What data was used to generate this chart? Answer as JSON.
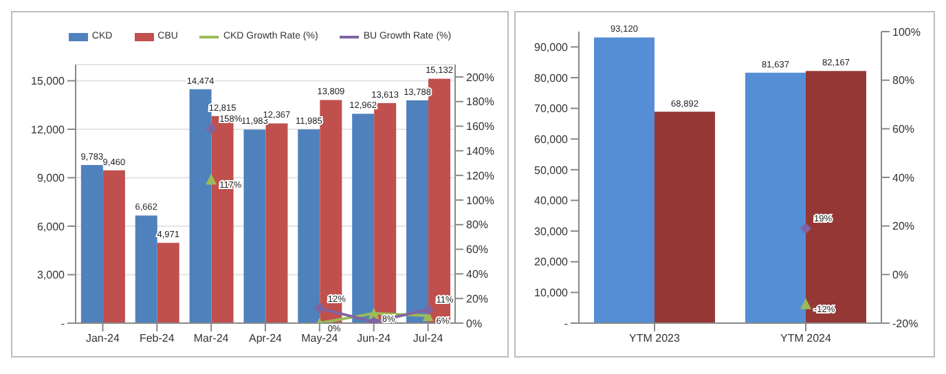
{
  "chart_data": [
    {
      "type": "bar",
      "categories": [
        "Jan-24",
        "Feb-24",
        "Mar-24",
        "Apr-24",
        "May-24",
        "Jun-24",
        "Jul-24"
      ],
      "series": [
        {
          "name": "CKD",
          "color": "#4f81bd",
          "values": [
            9783,
            6662,
            14474,
            11983,
            11985,
            12962,
            13788
          ],
          "value_labels": [
            "9,783",
            "6,662",
            "14,474",
            "11,983",
            "11,985",
            "12,962",
            "13,788"
          ]
        },
        {
          "name": "CBU",
          "color": "#c0504d",
          "values": [
            9460,
            4971,
            12815,
            12367,
            13809,
            13613,
            15132
          ],
          "value_labels": [
            "9,460",
            "4,971",
            "12,815",
            "12,367",
            "13,809",
            "13,613",
            "15,132"
          ]
        },
        {
          "name": "CKD Growth Rate (%)",
          "type": "line",
          "axis": "y2",
          "marker": "triangle",
          "color": "#9bbb59",
          "values": [
            null,
            null,
            117,
            null,
            0,
            8,
            6
          ],
          "value_labels": [
            null,
            null,
            "117%",
            null,
            "0%",
            "8%",
            "6%"
          ]
        },
        {
          "name": "BU Growth Rate (%)",
          "type": "line",
          "axis": "y2",
          "marker": "diamond",
          "color": "#8064a2",
          "values": [
            null,
            null,
            158,
            null,
            12,
            1,
            11
          ],
          "value_labels": [
            null,
            null,
            "158%",
            null,
            "12%",
            null,
            "11%"
          ]
        }
      ],
      "legend": "top",
      "grid": "y",
      "ylim": [
        0,
        16000
      ],
      "yticks": [
        {
          "value": 0,
          "label": "-"
        },
        {
          "value": 3000,
          "label": "3,000"
        },
        {
          "value": 6000,
          "label": "6,000"
        },
        {
          "value": 9000,
          "label": "9,000"
        },
        {
          "value": 12000,
          "label": "12,000"
        },
        {
          "value": 15000,
          "label": "15,000"
        }
      ],
      "y2lim": [
        0,
        210
      ],
      "y2ticks": [
        {
          "value": 0,
          "label": "0%"
        },
        {
          "value": 20,
          "label": "20%"
        },
        {
          "value": 40,
          "label": "40%"
        },
        {
          "value": 60,
          "label": "60%"
        },
        {
          "value": 80,
          "label": "80%"
        },
        {
          "value": 100,
          "label": "100%"
        },
        {
          "value": 120,
          "label": "120%"
        },
        {
          "value": 140,
          "label": "140%"
        },
        {
          "value": 160,
          "label": "160%"
        },
        {
          "value": 180,
          "label": "180%"
        },
        {
          "value": 200,
          "label": "200%"
        }
      ]
    },
    {
      "type": "bar",
      "categories": [
        "YTM 2023",
        "YTM 2024"
      ],
      "series": [
        {
          "color": "#558ed5",
          "values": [
            93120,
            81637
          ],
          "value_labels": [
            "93,120",
            "81,637"
          ]
        },
        {
          "color": "#953735",
          "values": [
            68892,
            82167
          ],
          "value_labels": [
            "68,892",
            "82,167"
          ]
        },
        {
          "type": "line",
          "axis": "y2",
          "marker": "triangle",
          "color": "#9bbb59",
          "values": [
            null,
            -12
          ],
          "value_labels": [
            null,
            "-12%"
          ]
        },
        {
          "type": "line",
          "axis": "y2",
          "marker": "diamond",
          "color": "#8064a2",
          "values": [
            null,
            19
          ],
          "value_labels": [
            null,
            "19%"
          ]
        }
      ],
      "grid": false,
      "ylim": [
        0,
        95000
      ],
      "yticks": [
        {
          "value": 0,
          "label": "-"
        },
        {
          "value": 10000,
          "label": "10,000"
        },
        {
          "value": 20000,
          "label": "20,000"
        },
        {
          "value": 30000,
          "label": "30,000"
        },
        {
          "value": 40000,
          "label": "40,000"
        },
        {
          "value": 50000,
          "label": "50,000"
        },
        {
          "value": 60000,
          "label": "60,000"
        },
        {
          "value": 70000,
          "label": "70,000"
        },
        {
          "value": 80000,
          "label": "80,000"
        },
        {
          "value": 90000,
          "label": "90,000"
        }
      ],
      "y2lim": [
        -20,
        100
      ],
      "y2ticks": [
        {
          "value": -20,
          "label": "-20%"
        },
        {
          "value": 0,
          "label": "0%"
        },
        {
          "value": 20,
          "label": "20%"
        },
        {
          "value": 40,
          "label": "40%"
        },
        {
          "value": 60,
          "label": "60%"
        },
        {
          "value": 80,
          "label": "80%"
        },
        {
          "value": 100,
          "label": "100%"
        }
      ]
    }
  ]
}
